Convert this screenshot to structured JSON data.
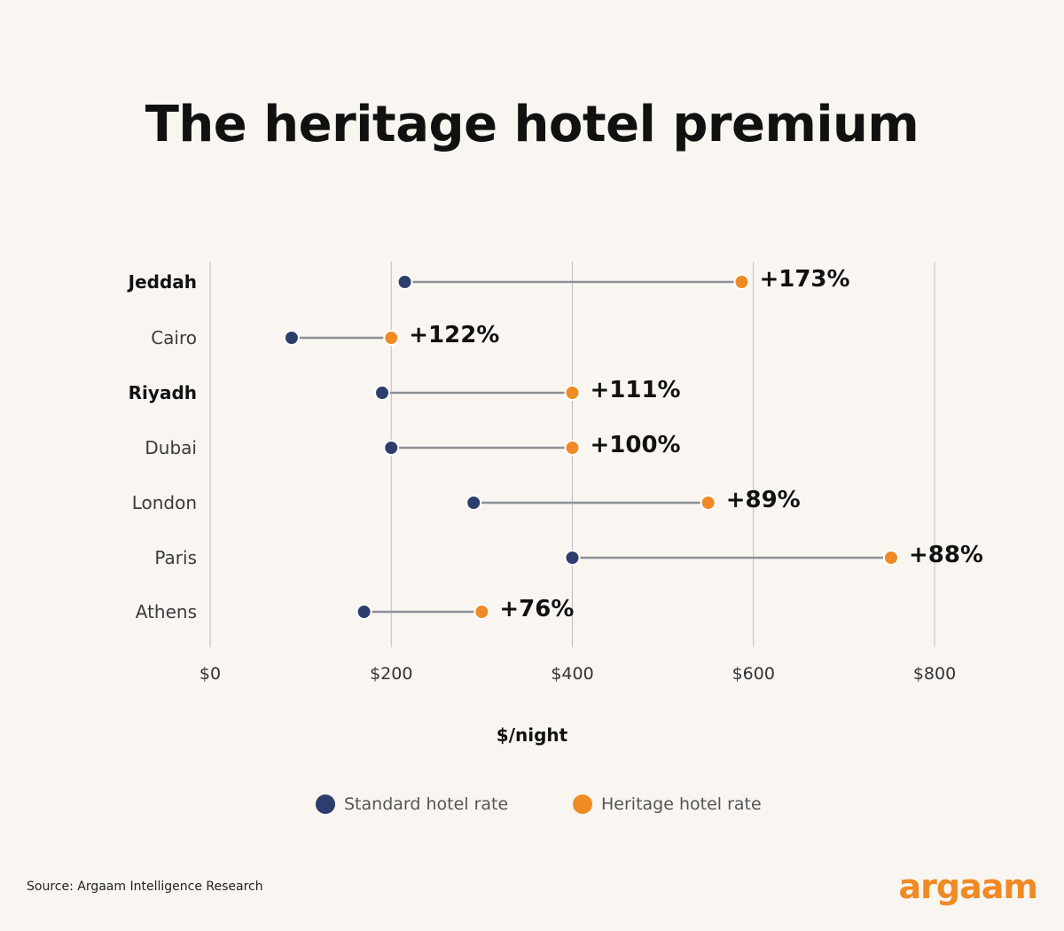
{
  "colors": {
    "standard": "#2d3e6e",
    "heritage": "#f08a24",
    "connector": "#8d9096",
    "grid": "#bdbdbd",
    "background": "#f9f6f1",
    "brand": "#ef8a25"
  },
  "title": "The heritage hotel premium",
  "legend": {
    "standard_label": "Standard hotel rate",
    "heritage_label": "Heritage hotel rate"
  },
  "source": "Source: Argaam Intelligence Research",
  "brand": "argaam",
  "chart_data": {
    "type": "dumbbell",
    "title": "The heritage hotel premium",
    "xlabel": "$/night",
    "xlim": [
      0,
      800
    ],
    "xticks": [
      0,
      200,
      400,
      600,
      800
    ],
    "xtick_labels": [
      "$0",
      "$200",
      "$400",
      "$600",
      "$800"
    ],
    "grid": "vertical",
    "series": [
      {
        "name": "Standard hotel rate",
        "color": "#2d3e6e"
      },
      {
        "name": "Heritage hotel rate",
        "color": "#f08a24"
      }
    ],
    "rows": [
      {
        "city": "Jeddah",
        "bold": true,
        "standard": 215,
        "heritage": 587,
        "premium": "+173%"
      },
      {
        "city": "Cairo",
        "bold": false,
        "standard": 90,
        "heritage": 200,
        "premium": "+122%"
      },
      {
        "city": "Riyadh",
        "bold": true,
        "standard": 190,
        "heritage": 400,
        "premium": "+111%"
      },
      {
        "city": "Dubai",
        "bold": false,
        "standard": 200,
        "heritage": 400,
        "premium": "+100%"
      },
      {
        "city": "London",
        "bold": false,
        "standard": 291,
        "heritage": 550,
        "premium": "+89%"
      },
      {
        "city": "Paris",
        "bold": false,
        "standard": 400,
        "heritage": 752,
        "premium": "+88%"
      },
      {
        "city": "Athens",
        "bold": false,
        "standard": 170,
        "heritage": 300,
        "premium": "+76%"
      }
    ]
  }
}
